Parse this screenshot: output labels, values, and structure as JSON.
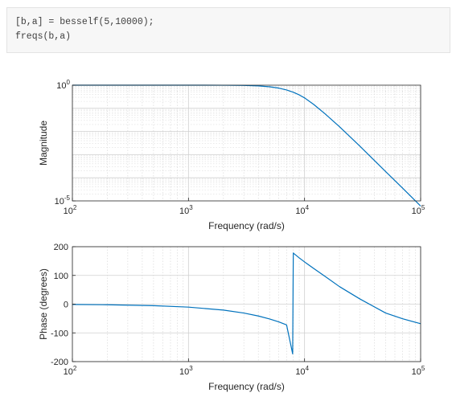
{
  "code": {
    "lines": [
      "[b,a] = besself(5,10000);",
      "freqs(b,a)"
    ]
  },
  "chart_data": [
    {
      "type": "line",
      "xlabel": "Frequency (rad/s)",
      "ylabel": "Magnitude",
      "xscale": "log",
      "yscale": "log",
      "xlim": [
        100,
        100000
      ],
      "ylim": [
        1e-05,
        1
      ],
      "xticks": [
        {
          "base": "10",
          "exp": "2"
        },
        {
          "base": "10",
          "exp": "3"
        },
        {
          "base": "10",
          "exp": "4"
        },
        {
          "base": "10",
          "exp": "5"
        }
      ],
      "yticks": [
        {
          "base": "10",
          "exp": "0"
        },
        {
          "base": "10",
          "exp": "-5"
        }
      ],
      "grid": true,
      "color": "#0072bd",
      "x": [
        100,
        300,
        1000,
        2000,
        3000,
        4000,
        5000,
        6000,
        7000,
        8000,
        9000,
        10000,
        12000,
        15000,
        20000,
        30000,
        50000,
        70000,
        100000
      ],
      "y": [
        1,
        1,
        0.9997,
        0.9953,
        0.977,
        0.932,
        0.854,
        0.747,
        0.622,
        0.496,
        0.38,
        0.283,
        0.147,
        0.0583,
        0.016,
        0.0023,
        0.000185,
        3.53e-05,
        6e-06
      ]
    },
    {
      "type": "line",
      "xlabel": "Frequency (rad/s)",
      "ylabel": "Phase (degrees)",
      "xscale": "log",
      "xlim": [
        100,
        100000
      ],
      "ylim": [
        -200,
        200
      ],
      "xticks": [
        {
          "base": "10",
          "exp": "2"
        },
        {
          "base": "10",
          "exp": "3"
        },
        {
          "base": "10",
          "exp": "4"
        },
        {
          "base": "10",
          "exp": "5"
        }
      ],
      "yticks": [
        200,
        100,
        0,
        -100,
        -200
      ],
      "grid": true,
      "color": "#0072bd",
      "x": [
        100,
        200,
        500,
        1000,
        2000,
        3000,
        4000,
        5000,
        6000,
        7000,
        7900,
        8000,
        8100,
        9000,
        10000,
        12000,
        15000,
        20000,
        30000,
        50000,
        70000,
        100000
      ],
      "y": [
        -1.0,
        -2.1,
        -5.2,
        -10.3,
        -20.7,
        -31.0,
        -41.3,
        -51.6,
        -61.8,
        -72.1,
        -173,
        178,
        176,
        161,
        147,
        124,
        97,
        61,
        18,
        -31,
        -51,
        -68
      ]
    }
  ]
}
